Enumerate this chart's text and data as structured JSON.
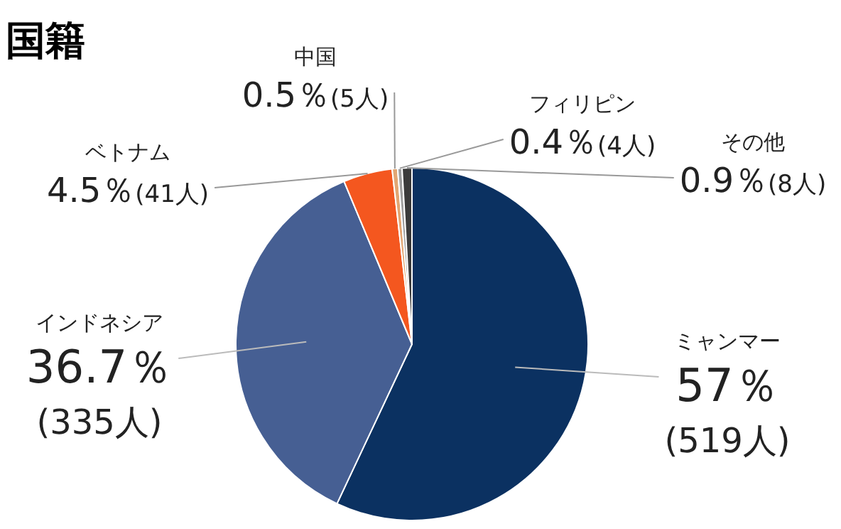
{
  "chart_data": {
    "type": "pie",
    "title": "国籍",
    "categories": [
      "ミャンマー",
      "インドネシア",
      "ベトナム",
      "中国",
      "フィリピン",
      "その他"
    ],
    "values": [
      57,
      36.7,
      4.5,
      0.5,
      0.4,
      0.9
    ],
    "colors": [
      "#0b3161",
      "#465f93",
      "#f4571f",
      "#e2a673",
      "#9e9e9e",
      "#3a3a3a"
    ],
    "value_labels": [
      "57％(519人)",
      "36.7％(335人)",
      "4.5％(41人)",
      "0.5％(5人)",
      "0.4％(4人)",
      "0.9％(8人)"
    ]
  }
}
